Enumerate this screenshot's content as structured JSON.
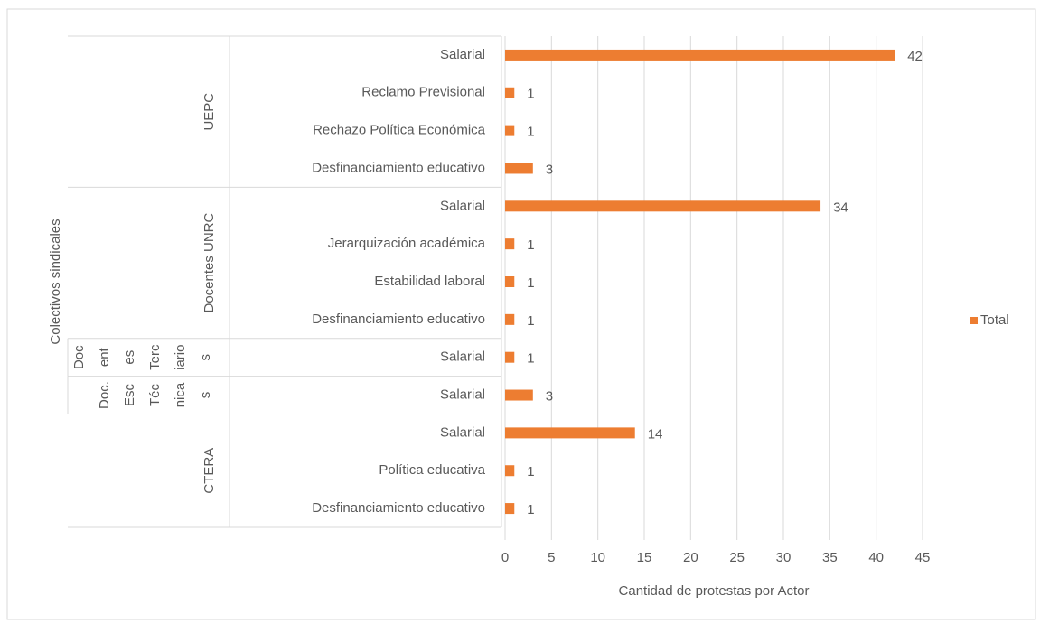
{
  "chart_data": {
    "type": "bar",
    "x_label": "Cantidad de protestas por Actor",
    "y_label": "Colectivos sindicales",
    "series": [
      {
        "name": "Total",
        "color": "#ed7d31"
      }
    ],
    "groups": [
      {
        "label": "UEPC",
        "categories": [
          "Salarial",
          "Reclamo Previsional",
          "Rechazo Política Económica",
          "Desfinanciamiento educativo"
        ],
        "values": [
          42,
          1,
          1,
          3
        ]
      },
      {
        "label": "Docentes UNRC",
        "categories": [
          "Salarial",
          "Jerarquización académica",
          "Estabilidad laboral",
          "Desfinanciamiento educativo"
        ],
        "values": [
          34,
          1,
          1,
          1
        ]
      },
      {
        "label": [
          "Doc",
          "ent",
          "es",
          "Terc",
          "iario",
          "s"
        ],
        "categories": [
          "Salarial"
        ],
        "values": [
          1
        ]
      },
      {
        "label": [
          "Doc.",
          "Esc",
          "Téc",
          "nica",
          "s"
        ],
        "categories": [
          "Salarial"
        ],
        "values": [
          3
        ]
      },
      {
        "label": "CTERA",
        "categories": [
          "Salarial",
          "Política educativa",
          "Desfinanciamiento educativo"
        ],
        "values": [
          14,
          1,
          1
        ]
      }
    ],
    "xlim": [
      0,
      45
    ],
    "xticks": [
      0,
      5,
      10,
      15,
      20,
      25,
      30,
      35,
      40,
      45
    ],
    "grid": true,
    "legend": "right"
  }
}
